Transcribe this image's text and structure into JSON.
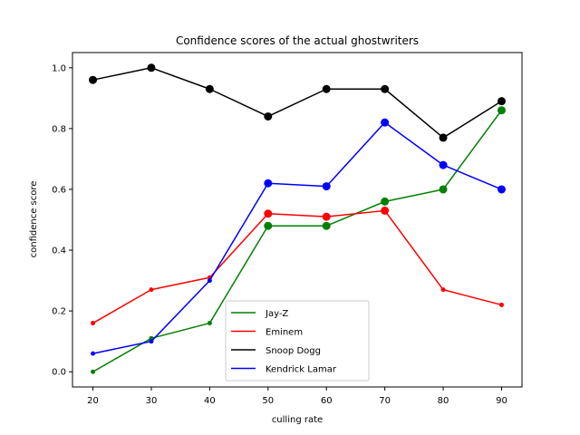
{
  "chart_data": {
    "type": "line",
    "title": "Confidence scores of the actual ghostwriters",
    "xlabel": "culling rate",
    "ylabel": "confidence score",
    "x": [
      20,
      30,
      40,
      50,
      60,
      70,
      80,
      90
    ],
    "xlim": [
      16.5,
      93.5
    ],
    "ylim": [
      -0.05,
      1.05
    ],
    "xticks": [
      20,
      30,
      40,
      50,
      60,
      70,
      80,
      90
    ],
    "yticks": [
      0.0,
      0.2,
      0.4,
      0.6,
      0.8,
      1.0
    ],
    "grid": false,
    "legend_position": "lower-center",
    "series": [
      {
        "name": "Jay-Z",
        "color": "#008000",
        "values": [
          0.0,
          0.11,
          0.16,
          0.48,
          0.48,
          0.56,
          0.6,
          0.86
        ],
        "large_markers": [
          false,
          false,
          false,
          true,
          true,
          true,
          true,
          true
        ]
      },
      {
        "name": "Eminem",
        "color": "#ff0000",
        "values": [
          0.16,
          0.27,
          0.31,
          0.52,
          0.51,
          0.53,
          0.27,
          0.22
        ],
        "large_markers": [
          false,
          false,
          false,
          true,
          true,
          true,
          false,
          false
        ]
      },
      {
        "name": "Snoop Dogg",
        "color": "#000000",
        "values": [
          0.96,
          1.0,
          0.93,
          0.84,
          0.93,
          0.93,
          0.77,
          0.89
        ],
        "large_markers": [
          true,
          true,
          true,
          true,
          true,
          true,
          true,
          true
        ]
      },
      {
        "name": "Kendrick Lamar",
        "color": "#0000ff",
        "values": [
          0.06,
          0.1,
          0.3,
          0.62,
          0.61,
          0.82,
          0.68,
          0.6
        ],
        "large_markers": [
          false,
          false,
          false,
          true,
          true,
          true,
          true,
          true
        ]
      }
    ]
  }
}
